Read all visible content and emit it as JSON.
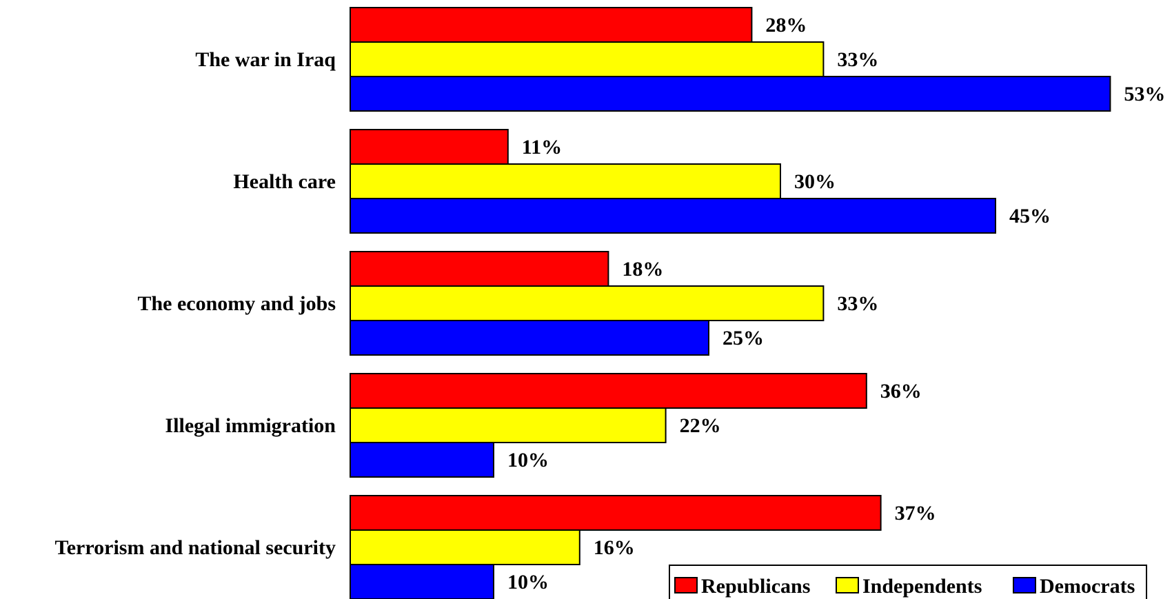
{
  "chart_data": {
    "type": "bar",
    "orientation": "horizontal",
    "title": "",
    "xlabel": "",
    "ylabel": "",
    "xlim": [
      0,
      55
    ],
    "grid": false,
    "legend_position": "bottom-right",
    "value_suffix": "%",
    "categories": [
      "The war in Iraq",
      "Health care",
      "The economy and jobs",
      "Illegal immigration",
      "Terrorism and national security"
    ],
    "series": [
      {
        "name": "Republicans",
        "color": "#ff0000",
        "values": [
          28,
          11,
          18,
          36,
          37
        ]
      },
      {
        "name": "Independents",
        "color": "#ffff00",
        "values": [
          33,
          30,
          33,
          22,
          16
        ]
      },
      {
        "name": "Democrats",
        "color": "#0000ff",
        "values": [
          53,
          45,
          25,
          10,
          10
        ]
      }
    ],
    "data_labels": [
      [
        "28%",
        "11%",
        "18%",
        "36%",
        "37%"
      ],
      [
        "33%",
        "30%",
        "33%",
        "22%",
        "16%"
      ],
      [
        "53%",
        "45%",
        "25%",
        "10%",
        "10%"
      ]
    ]
  }
}
